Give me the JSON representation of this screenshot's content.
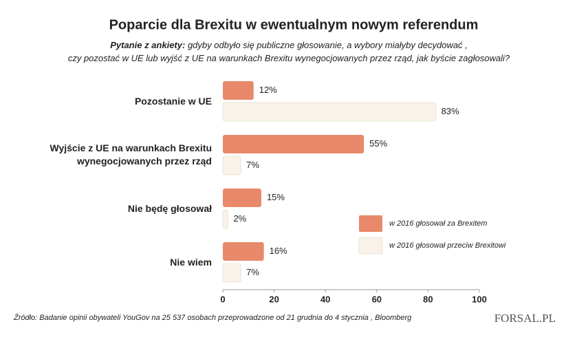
{
  "chart_data": {
    "type": "hbar",
    "title": "Poparcie dla Brexitu w ewentualnym nowym referendum",
    "question_label": "Pytanie z ankiety:",
    "question": "gdyby odbyło się publiczne głosowanie, a wybory miałyby decydować ,\nczy pozostać w UE lub wyjść z UE na warunkach Brexitu wynegocjowanych przez rząd, jak byście zagłosowali?",
    "categories": [
      "Pozostanie w UE",
      "Wyjście z UE na warunkach Brexitu\nwynegocjowanych przez rząd",
      "Nie będę głosował",
      "Nie wiem"
    ],
    "series": [
      {
        "name": "w 2016 głosował za Brexitem",
        "color": "#e8896b",
        "values": [
          12,
          55,
          15,
          16
        ],
        "value_labels": [
          "12%",
          "55%",
          "15%",
          "16%"
        ]
      },
      {
        "name": "w 2016 głosował przeciw Brexitowi",
        "color": "#f8f2e8",
        "values": [
          83,
          7,
          2,
          7
        ],
        "value_labels": [
          "83%",
          "7%",
          "2%",
          "7%"
        ]
      }
    ],
    "xlim": [
      0,
      100
    ],
    "xticks": [
      0,
      20,
      40,
      60,
      80,
      100
    ],
    "source": "Źródło: Badanie opinii obywateli YouGov na 25 537 osobach przeprowadzone od 21 grudnia do 4 stycznia , Bloomberg",
    "logo": "FORSAL.PL"
  }
}
